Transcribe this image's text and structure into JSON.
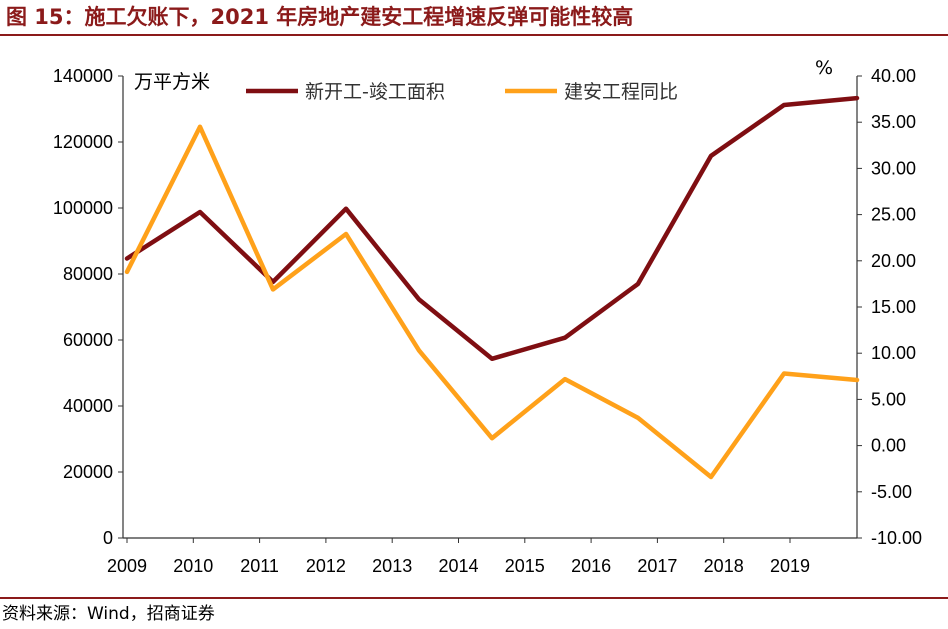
{
  "title": "图 15：施工欠账下，2021 年房地产建安工程增速反弹可能性较高",
  "source": "资料来源：Wind，招商证券",
  "chart_data": {
    "type": "line",
    "categories": [
      "2009",
      "2010",
      "2011",
      "2012",
      "2013",
      "2014",
      "2015",
      "2016",
      "2017",
      "2018",
      "2019"
    ],
    "y_left": {
      "unit": "万平方米",
      "min": 0,
      "max": 140000,
      "step": 20000,
      "ticks": [
        "0",
        "20000",
        "40000",
        "60000",
        "80000",
        "100000",
        "120000",
        "140000"
      ]
    },
    "y_right": {
      "unit": "%",
      "min": -10,
      "max": 40,
      "step": 5,
      "ticks": [
        "-10.00",
        "-5.00",
        "0.00",
        "5.00",
        "10.00",
        "15.00",
        "20.00",
        "25.00",
        "30.00",
        "35.00",
        "40.00"
      ]
    },
    "series": [
      {
        "name": "新开工-竣工面积",
        "axis": "left",
        "color": "#7f0e12",
        "values": [
          84700,
          98800,
          77600,
          99800,
          72300,
          54300,
          60700,
          77000,
          115800,
          131200,
          133300
        ]
      },
      {
        "name": "建安工程同比",
        "axis": "right",
        "color": "#ffa11a",
        "values": [
          18.8,
          34.5,
          16.9,
          22.9,
          10.3,
          0.8,
          7.2,
          3.0,
          -3.4,
          7.8,
          7.1
        ]
      }
    ],
    "grid": false,
    "legend_position": "top"
  }
}
